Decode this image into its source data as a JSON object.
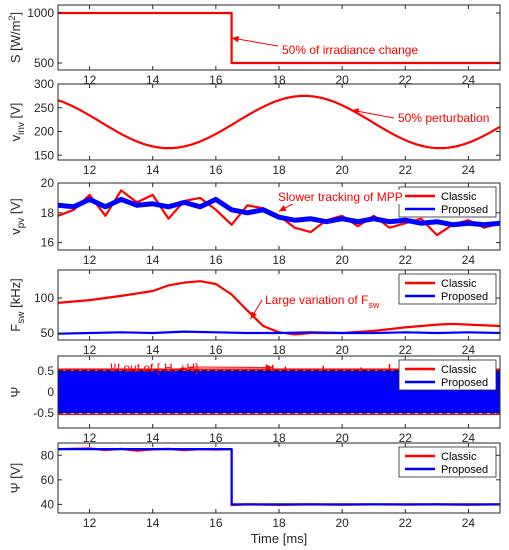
{
  "colors": {
    "classic": "#ff0000",
    "proposed": "#0000ff",
    "axis": "#262626",
    "annotation": "#ff0000",
    "threshold": "#000000"
  },
  "xlabel": "Time [ms]",
  "chart_data": [
    {
      "type": "line",
      "ylabel": "S [W/m²]",
      "ylabel_main": "S [W/m",
      "ylabel_sup": "2",
      "ylabel_end": "]",
      "xlim": [
        11,
        25
      ],
      "ylim": [
        430,
        1080
      ],
      "xticks": [
        "12",
        "14",
        "16",
        "18",
        "20",
        "22",
        "24"
      ],
      "yticks": [
        "500",
        "1000"
      ],
      "series": [
        {
          "color_key": "classic",
          "x": [
            11,
            16.5,
            16.5,
            25
          ],
          "y": [
            1000,
            1000,
            500,
            500
          ]
        }
      ],
      "annotation": {
        "text": "50% of irradiance change",
        "arrow_to": [
          16.5,
          750
        ]
      }
    },
    {
      "type": "line",
      "ylabel_main": "v",
      "ylabel_sub": "inv",
      "ylabel_end": " [V]",
      "xlim": [
        11,
        25
      ],
      "ylim": [
        140,
        300
      ],
      "xticks": [
        "12",
        "14",
        "16",
        "18",
        "20",
        "22",
        "24"
      ],
      "yticks": [
        "150",
        "200",
        "250",
        "300"
      ],
      "series": [
        {
          "color_key": "classic",
          "function": "sine",
          "mean": 220,
          "amplitude": 55,
          "period": 8.6,
          "peak_at": 18.8
        }
      ],
      "annotation": {
        "text": "50% perturbation",
        "arrow_to": [
          20.3,
          245
        ]
      }
    },
    {
      "type": "line",
      "ylabel_main": "v",
      "ylabel_sub": "pv",
      "ylabel_end": " [V]",
      "xlim": [
        11,
        25
      ],
      "ylim": [
        15.5,
        20
      ],
      "xticks": [
        "12",
        "14",
        "16",
        "18",
        "20",
        "22",
        "24"
      ],
      "yticks": [
        "16",
        "18",
        "20"
      ],
      "legend": {
        "position": "top-right",
        "entries": [
          "Classic",
          "Proposed"
        ]
      },
      "series": [
        {
          "name": "Classic",
          "color_key": "classic",
          "x": [
            11,
            11.5,
            12,
            12.5,
            13,
            13.5,
            14,
            14.5,
            15,
            15.5,
            16,
            16.5,
            17,
            17.5,
            18,
            18.5,
            19,
            19.5,
            20,
            20.5,
            21,
            21.5,
            22,
            22.5,
            23,
            23.5,
            24,
            24.5,
            25
          ],
          "y": [
            17.8,
            18.2,
            19.2,
            17.8,
            19.5,
            18.7,
            19.2,
            17.6,
            18.8,
            19.0,
            18.2,
            17.2,
            18.5,
            18.3,
            17.8,
            17.0,
            16.7,
            17.5,
            17.8,
            17.1,
            17.8,
            17.0,
            17.3,
            17.6,
            16.5,
            17.2,
            17.5,
            17.0,
            17.3
          ]
        },
        {
          "name": "Proposed",
          "color_key": "proposed",
          "x": [
            11,
            11.5,
            12,
            12.5,
            13,
            13.5,
            14,
            14.5,
            15,
            15.5,
            16,
            16.5,
            17,
            17.5,
            18,
            18.5,
            19,
            19.5,
            20,
            20.5,
            21,
            21.5,
            22,
            22.5,
            23,
            23.5,
            24,
            24.5,
            25
          ],
          "y": [
            18.5,
            18.4,
            18.9,
            18.4,
            18.9,
            18.5,
            18.6,
            18.4,
            18.7,
            18.4,
            18.9,
            18.2,
            18.0,
            18.2,
            17.7,
            17.5,
            17.6,
            17.4,
            17.6,
            17.4,
            17.6,
            17.4,
            17.5,
            17.3,
            17.4,
            17.2,
            17.3,
            17.2,
            17.3
          ]
        }
      ],
      "annotation": {
        "text": "Slower tracking of MPP",
        "arrow_to": [
          18.0,
          18.1
        ]
      }
    },
    {
      "type": "line",
      "ylabel_main": "F",
      "ylabel_sub": "sw",
      "ylabel_end": " [kHz]",
      "xlim": [
        11,
        25
      ],
      "ylim": [
        40,
        140
      ],
      "xticks": [
        "12",
        "14",
        "16",
        "18",
        "20",
        "22",
        "24"
      ],
      "yticks": [
        "50",
        "100"
      ],
      "legend": {
        "position": "top-right",
        "entries": [
          "Classic",
          "Proposed"
        ]
      },
      "series": [
        {
          "name": "Classic",
          "color_key": "classic",
          "x": [
            11,
            12,
            13,
            14,
            14.5,
            15,
            15.5,
            16,
            16.5,
            17,
            17.5,
            18,
            18.5,
            19,
            20,
            21,
            22,
            23,
            23.5,
            24,
            25
          ],
          "y": [
            93,
            97,
            103,
            110,
            118,
            122,
            124,
            120,
            105,
            82,
            60,
            51,
            48,
            50,
            50,
            53,
            58,
            62,
            63,
            62,
            60
          ]
        },
        {
          "name": "Proposed",
          "color_key": "proposed",
          "x": [
            11,
            12,
            13,
            14,
            15,
            16,
            17,
            18,
            19,
            20,
            21,
            22,
            23,
            24,
            25
          ],
          "y": [
            49,
            50,
            51,
            50,
            52,
            51,
            50,
            50,
            51,
            50,
            50,
            51,
            50,
            51,
            50
          ]
        }
      ],
      "annotation": {
        "text": "Large variation of F",
        "text_sub": "sw",
        "arrow_to": [
          17.1,
          70
        ]
      }
    },
    {
      "type": "line",
      "ylabel_main": "Ψ",
      "ylabel_end": "",
      "xlim": [
        11,
        25
      ],
      "ylim": [
        -0.85,
        0.85
      ],
      "xticks": [
        "12",
        "14",
        "16",
        "18",
        "20",
        "22",
        "24"
      ],
      "yticks": [
        "-0.5",
        "0",
        "0.5"
      ],
      "legend": {
        "position": "top-right",
        "entries": [
          "Classic",
          "Proposed"
        ]
      },
      "thresholds": [
        0.5,
        -0.5
      ],
      "band": {
        "color_key": "proposed",
        "low": -0.5,
        "high": 0.5
      },
      "classic_spikes": {
        "x": [
          15.2,
          17.8,
          18.2,
          19.4,
          20.6,
          21.5,
          22.6,
          23.4,
          24.6
        ],
        "y": [
          0.58,
          0.64,
          0.6,
          0.62,
          0.58,
          0.66,
          0.6,
          0.62,
          0.58
        ]
      },
      "annotation": {
        "text": "Ψ out of [-H, +H]",
        "arrow_to": [
          17.8,
          0.58
        ]
      }
    },
    {
      "type": "line",
      "ylabel_main": "Ψ",
      "ylabel_end": " [V]",
      "xlim": [
        11,
        25
      ],
      "ylim": [
        33,
        90
      ],
      "xticks": [
        "12",
        "14",
        "16",
        "18",
        "20",
        "22",
        "24"
      ],
      "yticks": [
        "40",
        "60",
        "80"
      ],
      "legend": {
        "position": "top-right",
        "entries": [
          "Classic",
          "Proposed"
        ]
      },
      "series": [
        {
          "name": "Classic",
          "color_key": "classic",
          "x": [
            11,
            12,
            12.5,
            13,
            13.5,
            14,
            14.5,
            15,
            15.5,
            16,
            16.5,
            16.5,
            17,
            18,
            19,
            20,
            21,
            22,
            23,
            24,
            25
          ],
          "y": [
            85,
            85.5,
            84.3,
            85.2,
            83.8,
            84.8,
            85.2,
            84.2,
            85,
            84.7,
            85,
            39.5,
            40,
            39.6,
            40,
            39.7,
            40,
            39.8,
            40,
            39.7,
            40
          ]
        },
        {
          "name": "Proposed",
          "color_key": "proposed",
          "x": [
            11,
            12,
            13,
            14,
            15,
            16,
            16.5,
            16.5,
            17,
            18,
            19,
            20,
            21,
            22,
            23,
            24,
            25
          ],
          "y": [
            85,
            85,
            85,
            85,
            85,
            85,
            85,
            40,
            40,
            40,
            40,
            40,
            40,
            40,
            40,
            40,
            40
          ]
        }
      ]
    }
  ]
}
